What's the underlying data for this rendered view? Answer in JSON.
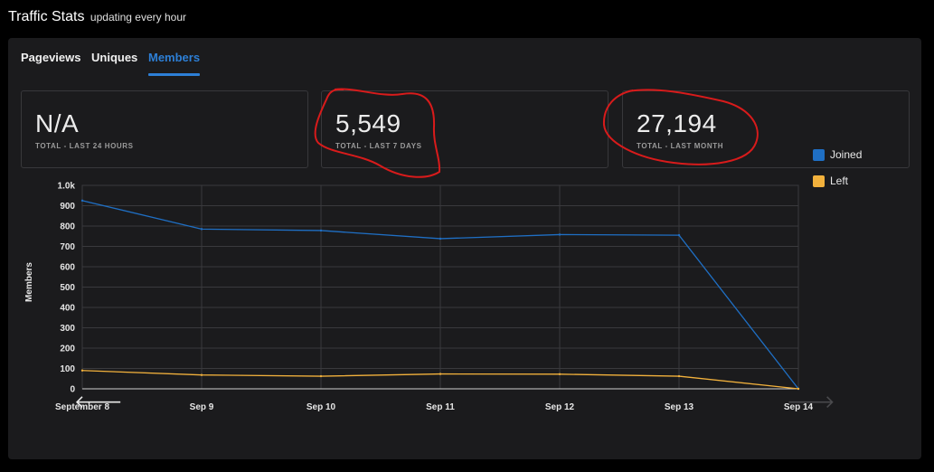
{
  "header": {
    "title": "Traffic Stats",
    "subtitle": "updating every hour"
  },
  "tabs": [
    {
      "label": "Pageviews",
      "active": false
    },
    {
      "label": "Uniques",
      "active": false
    },
    {
      "label": "Members",
      "active": true
    }
  ],
  "stats": [
    {
      "value": "N/A",
      "label": "TOTAL - LAST 24 HOURS"
    },
    {
      "value": "5,549",
      "label": "TOTAL - LAST 7 DAYS"
    },
    {
      "value": "27,194",
      "label": "TOTAL - LAST MONTH"
    }
  ],
  "colors": {
    "accent": "#2d7fd6",
    "joined": "#1f6fc4",
    "left": "#f2b13c",
    "annotation": "#d81b1b"
  },
  "icons": {
    "prev": "arrow-left-icon",
    "next": "arrow-right-icon"
  },
  "nav": {
    "prev_glyph": "🡐",
    "next_glyph": "🡒"
  },
  "chart_data": {
    "type": "line",
    "ylabel": "Members",
    "x": [
      "September 8",
      "Sep 9",
      "Sep 10",
      "Sep 11",
      "Sep 12",
      "Sep 13",
      "Sep 14"
    ],
    "ylim": [
      0,
      1000
    ],
    "yticks": [
      "0",
      "100",
      "200",
      "300",
      "400",
      "500",
      "600",
      "700",
      "800",
      "900",
      "1.0k"
    ],
    "grid": true,
    "legend_position": "right",
    "series": [
      {
        "name": "Joined",
        "color": "#1f6fc4",
        "values": [
          925,
          785,
          778,
          738,
          758,
          755,
          0
        ]
      },
      {
        "name": "Left",
        "color": "#f2b13c",
        "values": [
          90,
          68,
          62,
          73,
          72,
          62,
          0
        ]
      }
    ]
  }
}
